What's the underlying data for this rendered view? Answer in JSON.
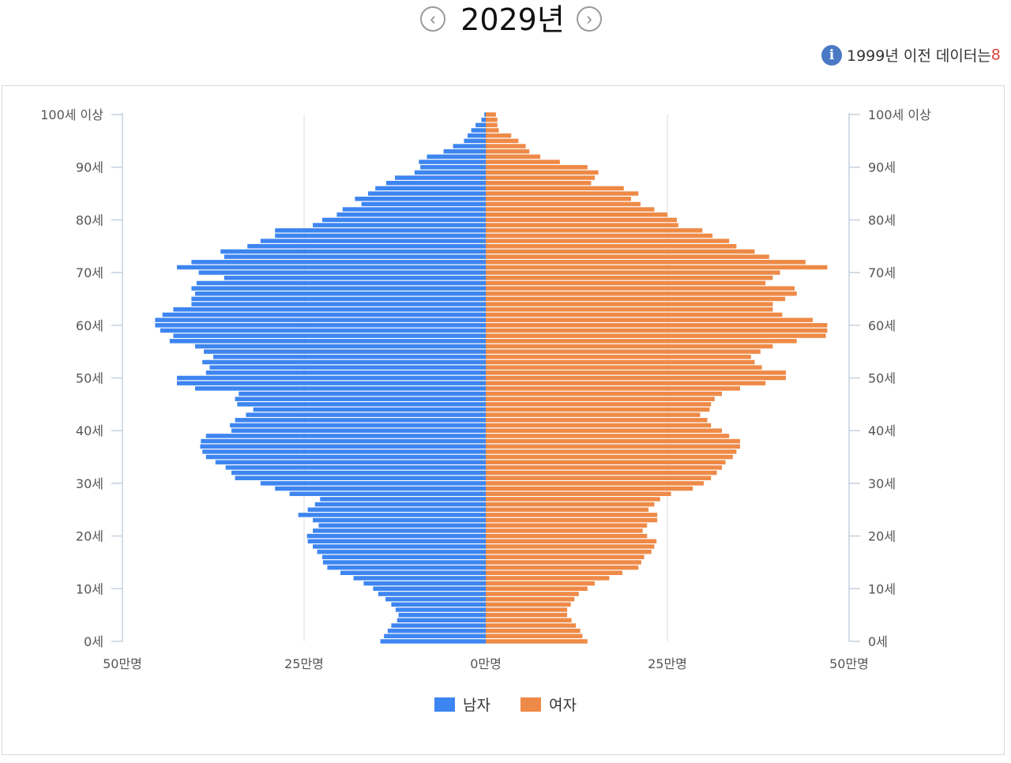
{
  "header": {
    "year_title": "2029년",
    "prev_symbol": "‹",
    "next_symbol": "›"
  },
  "notice": {
    "icon_glyph": "i",
    "text": "1999년 이전 데이터는",
    "accent_text": "8"
  },
  "colors": {
    "male": "#3d85f0",
    "female": "#ee8a47",
    "grid": "#dddddd",
    "axis": "#c5d0de",
    "tick_text": "#555555"
  },
  "chart_data": {
    "type": "bar",
    "orientation": "horizontal-population-pyramid",
    "title": "2029년",
    "value_unit": "명",
    "xlim": [
      -500000,
      500000
    ],
    "x_tick_labels": [
      {
        "value": -500000,
        "label": "50만명"
      },
      {
        "value": -250000,
        "label": "25만명"
      },
      {
        "value": 0,
        "label": "0만명"
      },
      {
        "value": 250000,
        "label": "25만명"
      },
      {
        "value": 500000,
        "label": "50만명"
      }
    ],
    "y_tick_labels": [
      {
        "age": 0,
        "label": "0세"
      },
      {
        "age": 10,
        "label": "10세"
      },
      {
        "age": 20,
        "label": "20세"
      },
      {
        "age": 30,
        "label": "30세"
      },
      {
        "age": 40,
        "label": "40세"
      },
      {
        "age": 50,
        "label": "50세"
      },
      {
        "age": 60,
        "label": "60세"
      },
      {
        "age": 70,
        "label": "70세"
      },
      {
        "age": 80,
        "label": "80세"
      },
      {
        "age": 90,
        "label": "90세"
      },
      {
        "age": 100,
        "label": "100세 이상"
      }
    ],
    "ages": [
      0,
      1,
      2,
      3,
      4,
      5,
      6,
      7,
      8,
      9,
      10,
      11,
      12,
      13,
      14,
      15,
      16,
      17,
      18,
      19,
      20,
      21,
      22,
      23,
      24,
      25,
      26,
      27,
      28,
      29,
      30,
      31,
      32,
      33,
      34,
      35,
      36,
      37,
      38,
      39,
      40,
      41,
      42,
      43,
      44,
      45,
      46,
      47,
      48,
      49,
      50,
      51,
      52,
      53,
      54,
      55,
      56,
      57,
      58,
      59,
      60,
      61,
      62,
      63,
      64,
      65,
      66,
      67,
      68,
      69,
      70,
      71,
      72,
      73,
      74,
      75,
      76,
      77,
      78,
      79,
      80,
      81,
      82,
      83,
      84,
      85,
      86,
      87,
      88,
      89,
      90,
      91,
      92,
      93,
      94,
      95,
      96,
      97,
      98,
      99,
      100
    ],
    "series": [
      {
        "name": "남자",
        "color": "#3d85f0",
        "values": [
          145000,
          140000,
          135000,
          130000,
          122000,
          120000,
          124000,
          130000,
          138000,
          148000,
          155000,
          168000,
          182000,
          200000,
          218000,
          224000,
          225000,
          232000,
          238000,
          245000,
          246000,
          238000,
          230000,
          238000,
          258000,
          245000,
          235000,
          228000,
          270000,
          290000,
          310000,
          345000,
          350000,
          358000,
          372000,
          385000,
          390000,
          393000,
          392000,
          385000,
          350000,
          352000,
          345000,
          330000,
          320000,
          342000,
          345000,
          340000,
          400000,
          425000,
          425000,
          385000,
          380000,
          390000,
          375000,
          388000,
          400000,
          435000,
          430000,
          448000,
          455000,
          455000,
          445000,
          430000,
          405000,
          405000,
          400000,
          405000,
          398000,
          360000,
          395000,
          425000,
          405000,
          360000,
          365000,
          328000,
          310000,
          290000,
          290000,
          238000,
          225000,
          205000,
          197000,
          171000,
          180000,
          162000,
          152000,
          137000,
          125000,
          98000,
          90000,
          92000,
          81000,
          58000,
          45000,
          30000,
          25000,
          20000,
          14000,
          6000,
          2000
        ]
      },
      {
        "name": "여자",
        "color": "#ee8a47",
        "values": [
          140000,
          133000,
          130000,
          124000,
          118000,
          112000,
          112000,
          117000,
          122000,
          128000,
          140000,
          150000,
          170000,
          188000,
          210000,
          214000,
          218000,
          228000,
          232000,
          235000,
          222000,
          216000,
          222000,
          236000,
          236000,
          224000,
          232000,
          240000,
          255000,
          285000,
          300000,
          310000,
          318000,
          325000,
          330000,
          340000,
          345000,
          350000,
          350000,
          335000,
          325000,
          310000,
          305000,
          295000,
          308000,
          310000,
          315000,
          325000,
          350000,
          385000,
          413000,
          413000,
          380000,
          370000,
          365000,
          378000,
          395000,
          428000,
          468000,
          470000,
          470000,
          450000,
          408000,
          395000,
          395000,
          412000,
          428000,
          425000,
          385000,
          395000,
          405000,
          470000,
          440000,
          390000,
          370000,
          345000,
          335000,
          312000,
          298000,
          265000,
          263000,
          250000,
          232000,
          213000,
          200000,
          210000,
          190000,
          145000,
          150000,
          155000,
          140000,
          102000,
          75000,
          60000,
          55000,
          45000,
          35000,
          18000,
          16000,
          16000,
          14000
        ]
      }
    ],
    "legend": [
      {
        "label": "남자",
        "color": "#3d85f0"
      },
      {
        "label": "여자",
        "color": "#ee8a47"
      }
    ],
    "grid": true,
    "legend_position": "bottom-center"
  }
}
